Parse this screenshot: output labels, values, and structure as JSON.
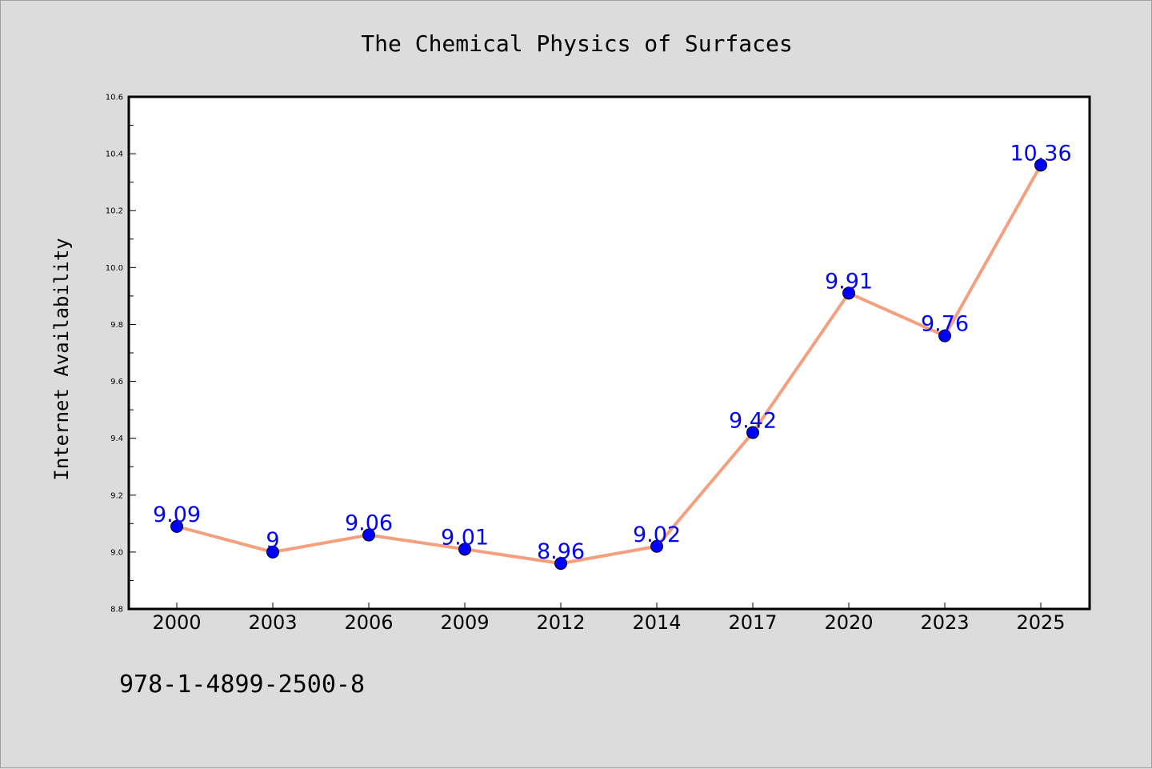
{
  "chart_data": {
    "type": "line",
    "title": "The Chemical Physics of Surfaces",
    "xlabel": "",
    "ylabel": "Internet Availability",
    "categories": [
      "2000",
      "2003",
      "2006",
      "2009",
      "2012",
      "2014",
      "2017",
      "2020",
      "2023",
      "2025"
    ],
    "series": [
      {
        "values": [
          9.09,
          9.0,
          9.06,
          9.01,
          8.96,
          9.02,
          9.42,
          9.91,
          9.76,
          10.36
        ]
      }
    ],
    "data_labels": [
      "9.09",
      "9",
      "9.06",
      "9.01",
      "8.96",
      "9.02",
      "9.42",
      "9.91",
      "9.76",
      "10.36"
    ],
    "ylim": [
      8.8,
      10.6
    ],
    "yticks": [
      "8.8",
      "9.0",
      "9.2",
      "9.4",
      "9.6",
      "9.8",
      "10.0",
      "10.2",
      "10.4",
      "10.6"
    ],
    "grid": false,
    "legend": "none",
    "colors": {
      "line": "#f4a07e",
      "marker": "#0000ff",
      "data_label": "#0000ff",
      "background": "#dcdcdc",
      "plot_area": "#ffffff"
    }
  },
  "annotation": "978-1-4899-2500-8"
}
